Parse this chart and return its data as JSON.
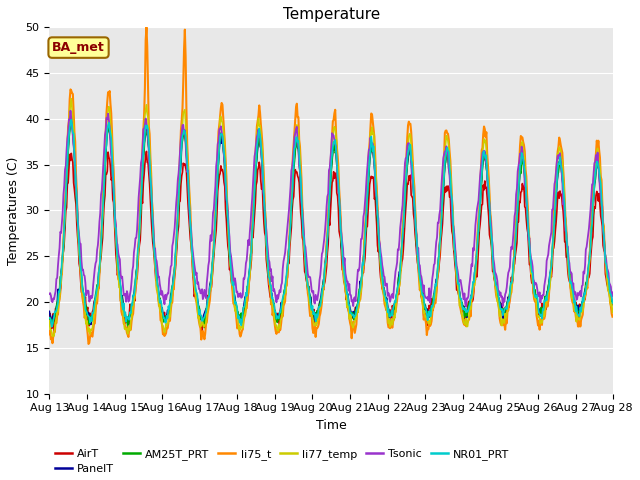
{
  "title": "Temperature",
  "xlabel": "Time",
  "ylabel": "Temperatures (C)",
  "ylim": [
    10,
    50
  ],
  "background_color": "#e8e8e8",
  "axes_facecolor": "#e8e8e8",
  "figure_facecolor": "#ffffff",
  "annotation_text": "BA_met",
  "annotation_facecolor": "#ffff99",
  "annotation_edgecolor": "#996600",
  "annotation_textcolor": "#8B0000",
  "series": {
    "AirT": {
      "color": "#cc0000",
      "lw": 1.2
    },
    "PanelT": {
      "color": "#000099",
      "lw": 1.2
    },
    "AM25T_PRT": {
      "color": "#00aa00",
      "lw": 1.2
    },
    "li75_t": {
      "color": "#ff8800",
      "lw": 1.5
    },
    "li77_temp": {
      "color": "#cccc00",
      "lw": 1.2
    },
    "Tsonic": {
      "color": "#9933cc",
      "lw": 1.3
    },
    "NR01_PRT": {
      "color": "#00cccc",
      "lw": 1.2
    }
  },
  "legend_order": [
    "AirT",
    "PanelT",
    "AM25T_PRT",
    "li75_t",
    "li77_temp",
    "Tsonic",
    "NR01_PRT"
  ],
  "tick_fontsize": 8,
  "label_fontsize": 9,
  "title_fontsize": 11
}
